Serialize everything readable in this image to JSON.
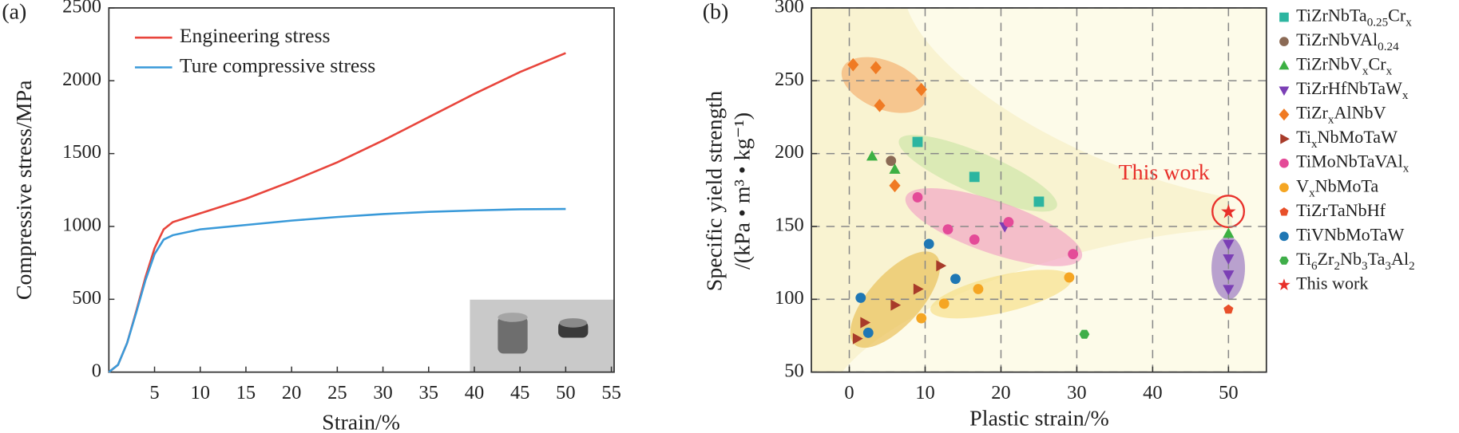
{
  "chart_data": [
    {
      "type": "line",
      "panel": "(a)",
      "x_label": "Strain/%",
      "y_label": "Compressive stress/MPa",
      "x": [
        0,
        1,
        2,
        3,
        4,
        5,
        6,
        7,
        10,
        15,
        20,
        25,
        30,
        35,
        40,
        45,
        50
      ],
      "series": [
        {
          "name": "Engineering stress",
          "color": "#e8453c",
          "values": [
            0,
            50,
            200,
            420,
            650,
            850,
            980,
            1030,
            1090,
            1190,
            1310,
            1440,
            1590,
            1750,
            1910,
            2060,
            2190
          ]
        },
        {
          "name": "Ture compressive stress",
          "color": "#3a9ad9",
          "values": [
            0,
            50,
            200,
            410,
            630,
            810,
            910,
            940,
            980,
            1010,
            1040,
            1065,
            1085,
            1100,
            1110,
            1118,
            1120
          ]
        }
      ],
      "xlim": [
        0,
        55.3
      ],
      "ylim": [
        0,
        2500
      ],
      "xticks": [
        5,
        10,
        15,
        20,
        25,
        30,
        35,
        40,
        45,
        50,
        55
      ],
      "yticks": [
        0,
        500,
        1000,
        1500,
        2000,
        2500
      ],
      "grid": false,
      "legend": "upper left"
    },
    {
      "type": "scatter",
      "panel": "(b)",
      "x_label": "Plastic strain/%",
      "y_label": [
        "Specific yield strength",
        "/(kPa • m³ • kg⁻¹)"
      ],
      "annotation": "This work",
      "series": [
        {
          "name": "TiZrNbTa0.25Crx",
          "color": "#2cb5a0",
          "marker": "square",
          "x": [
            9,
            16.5,
            25
          ],
          "values": [
            208,
            184,
            167
          ]
        },
        {
          "name": "TiZrNbVAl0.24",
          "color": "#8b6a55",
          "marker": "circle",
          "x": [
            5.5
          ],
          "values": [
            195
          ]
        },
        {
          "name": "TiZrNbVxCrx",
          "color": "#3cb043",
          "marker": "triangle-up",
          "x": [
            3,
            6,
            50
          ],
          "values": [
            198,
            189,
            145
          ]
        },
        {
          "name": "TiZrHfNbTaWx",
          "color": "#7b3fb5",
          "marker": "triangle-down",
          "x": [
            50,
            50,
            50,
            50,
            20.5
          ],
          "values": [
            138,
            128,
            117,
            107,
            150
          ]
        },
        {
          "name": "TiZrxAlNbV",
          "color": "#f07a23",
          "marker": "diamond",
          "x": [
            0.5,
            3.5,
            4,
            9.5,
            6
          ],
          "values": [
            261,
            259,
            233,
            244,
            178
          ]
        },
        {
          "name": "TixNbMoTaW",
          "color": "#a83b2a",
          "marker": "triangle-right",
          "x": [
            1,
            2,
            6,
            9,
            12
          ],
          "values": [
            73,
            84,
            96,
            107,
            123
          ]
        },
        {
          "name": "TiMoNbTaVAlx",
          "color": "#e44b98",
          "marker": "circle",
          "x": [
            9,
            13,
            16.5,
            21,
            29.5
          ],
          "values": [
            170,
            148,
            141,
            153,
            131
          ]
        },
        {
          "name": "VxNbMoTa",
          "color": "#f5a623",
          "marker": "circle",
          "x": [
            9.5,
            12.5,
            17,
            29
          ],
          "values": [
            87,
            97,
            107,
            115
          ]
        },
        {
          "name": "TiZrTaNbHf",
          "color": "#e8502a",
          "marker": "pentagon",
          "x": [
            50
          ],
          "values": [
            93
          ]
        },
        {
          "name": "TiVNbMoTaW",
          "color": "#1f77b4",
          "marker": "circle",
          "x": [
            1.5,
            2.5,
            10.5,
            14
          ],
          "values": [
            101,
            77,
            138,
            114
          ]
        },
        {
          "name": "Ti6Zr2Nb3Ta3Al2",
          "color": "#3fae49",
          "marker": "hexagon",
          "x": [
            31
          ],
          "values": [
            76
          ]
        },
        {
          "name": "This work",
          "color": "#e8302a",
          "marker": "star",
          "x": [
            50
          ],
          "values": [
            160
          ]
        }
      ],
      "xlim": [
        -5,
        55
      ],
      "ylim": [
        50,
        300
      ],
      "xticks": [
        0,
        10,
        20,
        30,
        40,
        50
      ],
      "yticks": [
        50,
        100,
        150,
        200,
        250,
        300
      ],
      "grid": true,
      "legend": "outside right"
    }
  ]
}
